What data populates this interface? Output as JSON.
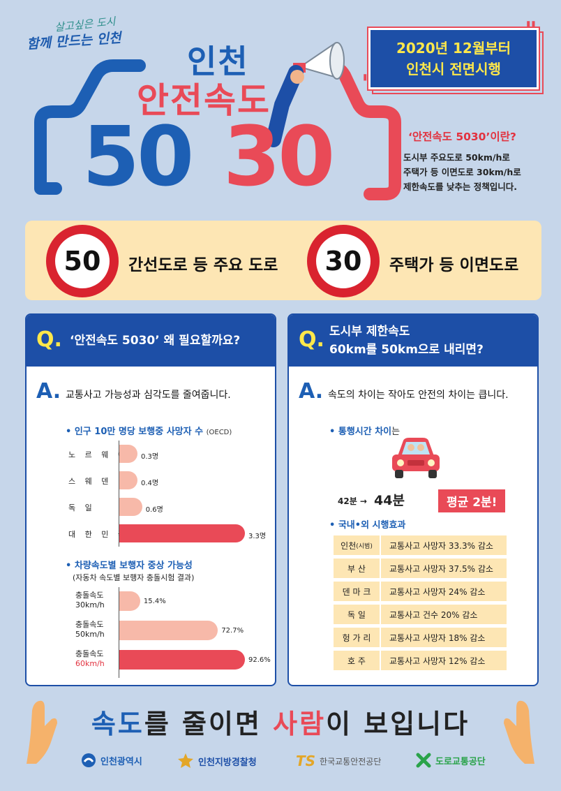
{
  "header": {
    "slogan_top": "살고싶은 도시",
    "slogan_main": "함께 만드는 인천",
    "title_incheon": "인천",
    "title_safe_speed": "안전속도",
    "big_50": "50",
    "big_30": "30",
    "date_line1": "2020년 12월부터",
    "date_line2": "인천시 전면시행",
    "definition_title": "‘안전속도 5030’이란?",
    "definition_lines": [
      "도시부 주요도로 50km/h로",
      "주택가 등 이면도로 30km/h로",
      "제한속도를 낮추는 정책입니다."
    ]
  },
  "signs": {
    "sign_50": "50",
    "label_50": "간선도로 등 주요 도로",
    "sign_30": "30",
    "label_30": "주택가 등 이면도로"
  },
  "left_panel": {
    "q": "Q.",
    "question": "‘안전속도 5030’ 왜 필요할까요?",
    "a": "A.",
    "answer": "교통사고 가능성과 심각도를 줄여줍니다.",
    "chart1_title": "• 인구 10만 명당 보행중 사망자 수",
    "chart1_title_suffix": "(OECD)",
    "chart2_title": "• 차량속도별 보행자 중상 가능성",
    "chart2_note": "(자동차 속도별 보행자 충돌시험 결과)"
  },
  "right_panel": {
    "q": "Q.",
    "question_line1": "도시부 제한속도",
    "question_line2": "60km를 50km으로 내리면?",
    "a": "A.",
    "answer": "속도의 차이는 작아도 안전의 차이는 큽니다.",
    "travel_title_prefix": "• 통행시간 차이",
    "travel_title_suffix": "는",
    "time_from": "42분 →",
    "time_to": "44분",
    "avg_pill": "평균 2분!",
    "effects_title": "• 국내•외 시행효과",
    "effects": [
      {
        "name": "인천",
        "tag": "(시범)",
        "value": "교통사고 사망자 33.3% 감소"
      },
      {
        "name": "부 산",
        "tag": "",
        "value": "교통사고 사망자 37.5% 감소"
      },
      {
        "name": "덴 마 크",
        "tag": "",
        "value": "교통사고 사망자 24% 감소"
      },
      {
        "name": "독 일",
        "tag": "",
        "value": "교통사고 건수 20% 감소"
      },
      {
        "name": "헝 가 리",
        "tag": "",
        "value": "교통사고 사망자 18% 감소"
      },
      {
        "name": "호 주",
        "tag": "",
        "value": "교통사고 사망자 12% 감소"
      }
    ]
  },
  "chart_data": [
    {
      "type": "bar",
      "title": "인구 10만 명당 보행중 사망자 수",
      "categories": [
        "노르웨이",
        "스웨덴",
        "독일",
        "대한민국"
      ],
      "category_labels": [
        "노 르 웨 이",
        "스  웨  덴",
        "독        일",
        "대 한 민 국"
      ],
      "values": [
        0.3,
        0.4,
        0.6,
        3.3
      ],
      "value_labels": [
        "0.3명",
        "0.4명",
        "0.6명",
        "3.3명"
      ],
      "xlim": [
        0,
        3.3
      ]
    },
    {
      "type": "bar",
      "title": "차량속도별 보행자 중상 가능성",
      "categories": [
        "충돌속도 30km/h",
        "충돌속도 50km/h",
        "충돌속도 60km/h"
      ],
      "label_line1": [
        "충돌속도",
        "충돌속도",
        "충돌속도"
      ],
      "label_line2": [
        "30km/h",
        "50km/h",
        "60km/h"
      ],
      "values": [
        15.4,
        72.7,
        92.6
      ],
      "value_labels": [
        "15.4%",
        "72.7%",
        "92.6%"
      ],
      "xlim": [
        0,
        92.6
      ]
    }
  ],
  "colors": {
    "blue": "#1d5fb4",
    "red": "#e94a57",
    "pale_bar": "#f7b9a9",
    "cream": "#fde6b4",
    "background": "#c6d6ea"
  },
  "footer": {
    "slogan_part1": "속도",
    "slogan_part2": "를 줄이면 ",
    "slogan_part3": "사람",
    "slogan_part4": "이 보입니다",
    "logos": [
      "인천광역시",
      "인천지방경찰청",
      "한국교통안전공단",
      "도로교통공단"
    ],
    "ts_mark": "TS"
  }
}
